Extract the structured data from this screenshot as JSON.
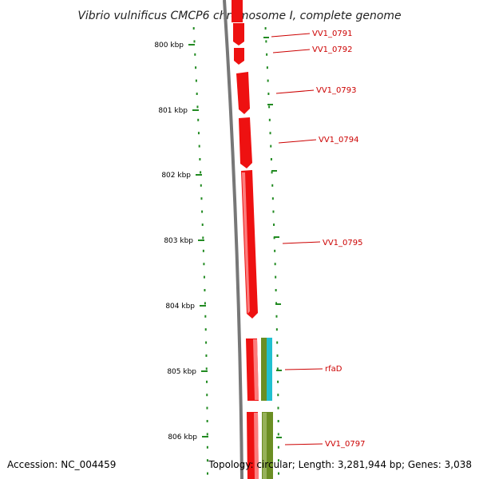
{
  "title": "Vibrio vulnificus CMCP6 chromosome I, complete genome",
  "footer": {
    "accession": "Accession: NC_004459",
    "summary": "Topology: circular; Length: 3,281,944 bp; Genes: 3,038"
  },
  "colors": {
    "backbone": "#777777",
    "tick": "#228B22",
    "gene": "#ee1111",
    "gene_highlight": "#ff9999",
    "olive": "#6b8e23",
    "cyan": "#20c0d0",
    "label": "#cc0000"
  },
  "ticks": [
    {
      "label": "800 kbp"
    },
    {
      "label": "801 kbp"
    },
    {
      "label": "802 kbp"
    },
    {
      "label": "803 kbp"
    },
    {
      "label": "804 kbp"
    },
    {
      "label": "805 kbp"
    },
    {
      "label": "806 kbp"
    }
  ],
  "genes": [
    {
      "label": "VV1_0791"
    },
    {
      "label": "VV1_0792"
    },
    {
      "label": "VV1_0793"
    },
    {
      "label": "VV1_0794"
    },
    {
      "label": "VV1_0795"
    },
    {
      "label": "rfaD"
    },
    {
      "label": "VV1_0797"
    }
  ]
}
